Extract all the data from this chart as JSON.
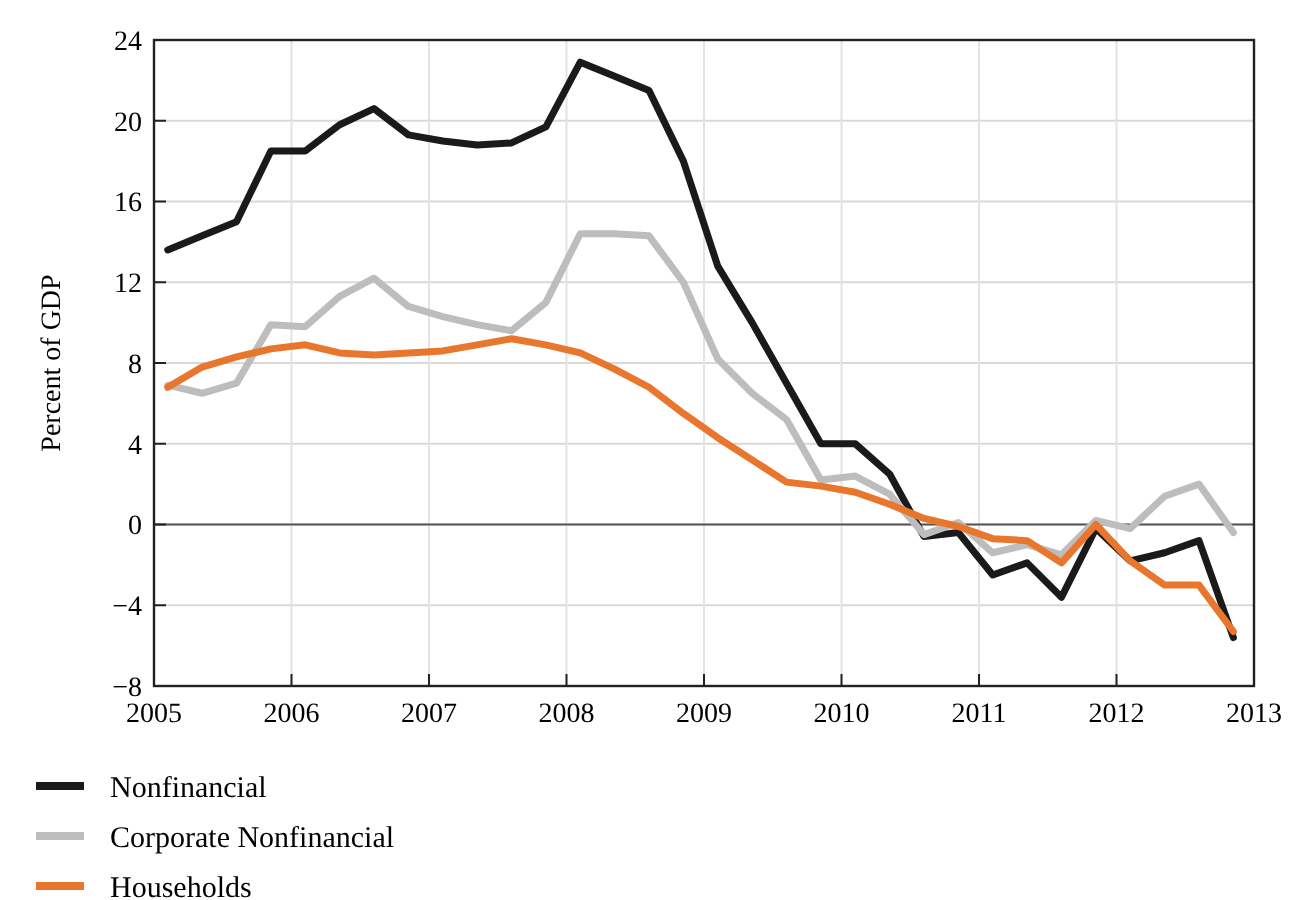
{
  "chart_data": {
    "type": "line",
    "ylabel": "Percent of GDP",
    "x": [
      2005.1,
      2005.35,
      2005.6,
      2005.85,
      2006.1,
      2006.35,
      2006.6,
      2006.85,
      2007.1,
      2007.35,
      2007.6,
      2007.85,
      2008.1,
      2008.35,
      2008.6,
      2008.85,
      2009.1,
      2009.35,
      2009.6,
      2009.85,
      2010.1,
      2010.35,
      2010.6,
      2010.85,
      2011.1,
      2011.35,
      2011.6,
      2011.85,
      2012.1,
      2012.35,
      2012.6,
      2012.85
    ],
    "series": [
      {
        "name": "Nonfinancial",
        "color": "#1a1a1a",
        "values": [
          13.6,
          14.3,
          15,
          18.5,
          18.5,
          19.8,
          20.6,
          19.3,
          19,
          18.8,
          18.9,
          19.7,
          22.9,
          22.2,
          21.5,
          18,
          12.8,
          10,
          7,
          4,
          4,
          2.5,
          -0.6,
          -0.4,
          -2.5,
          -1.9,
          -3.6,
          -0.2,
          -1.8,
          -1.4,
          -0.8,
          -5.6
        ]
      },
      {
        "name": "Corporate Nonfinancial",
        "color": "#bdbdbd",
        "values": [
          6.9,
          6.5,
          7,
          9.9,
          9.8,
          11.3,
          12.2,
          10.8,
          10.3,
          9.9,
          9.6,
          11,
          14.4,
          14.4,
          14.3,
          12,
          8.2,
          6.5,
          5.2,
          2.2,
          2.4,
          1.5,
          -0.5,
          0.1,
          -1.4,
          -1,
          -1.5,
          0.2,
          -0.2,
          1.4,
          2,
          -0.4
        ]
      },
      {
        "name": "Households",
        "color": "#e8762d",
        "values": [
          6.8,
          7.8,
          8.3,
          8.7,
          8.9,
          8.5,
          8.4,
          8.5,
          8.6,
          8.9,
          9.2,
          8.9,
          8.5,
          7.7,
          6.8,
          5.5,
          4.3,
          3.2,
          2.1,
          1.9,
          1.6,
          1,
          0.3,
          -0.1,
          -0.7,
          -0.8,
          -1.9,
          0,
          -1.8,
          -3,
          -3,
          -5.3
        ]
      }
    ],
    "xlim": [
      2005,
      2013
    ],
    "xticks": [
      2005,
      2006,
      2007,
      2008,
      2009,
      2010,
      2011,
      2012,
      2013
    ],
    "ylim": [
      -8,
      24
    ],
    "yticks": [
      -8,
      -4,
      0,
      4,
      8,
      12,
      16,
      20,
      24
    ],
    "grid": true,
    "legend": "bottom",
    "line_style": "solid",
    "marker": "none"
  }
}
